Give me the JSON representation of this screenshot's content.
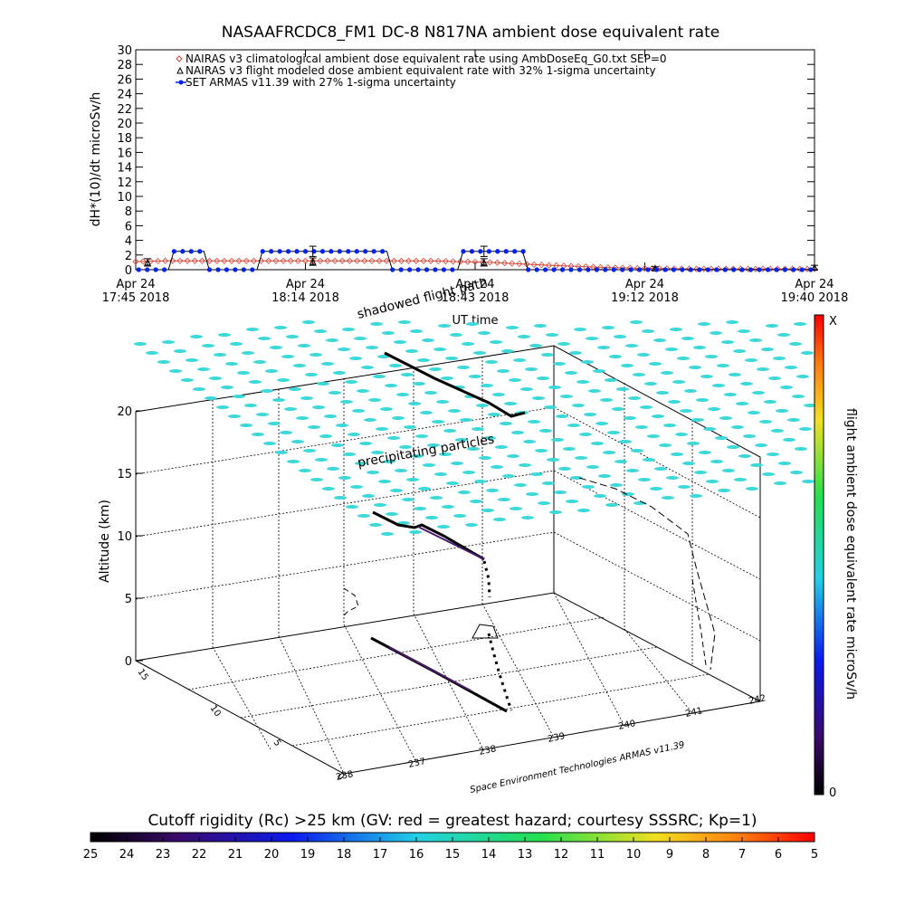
{
  "chart_data": [
    {
      "type": "line",
      "title": "NASAAFRCDC8_FM1 DC-8   N817NA ambient dose equivalent rate",
      "ylabel": "dH*(10)/dt microSv/h",
      "xlabel": "UT time",
      "ylim": [
        0,
        30
      ],
      "yticks": [
        0,
        2,
        4,
        6,
        8,
        10,
        12,
        14,
        16,
        18,
        20,
        22,
        24,
        26,
        28,
        30
      ],
      "xticks": [
        {
          "line1": "Apr 24",
          "line2": "17:45 2018"
        },
        {
          "line1": "Apr 24",
          "line2": "18:14 2018"
        },
        {
          "line1": "Apr 24",
          "line2": "18:43 2018"
        },
        {
          "line1": "Apr 24",
          "line2": "19:12 2018"
        },
        {
          "line1": "Apr 24",
          "line2": "19:40 2018"
        }
      ],
      "legend_placement": "top-left",
      "legend": [
        "NAIRAS v3 climatological ambient dose equivalent rate using AmbDoseEq_G0.txt SEP=0",
        "NAIRAS v3 flight modeled dose ambient equivalent rate with 32% 1-sigma uncertainty",
        "SET ARMAS v11.39 with 27% 1-sigma uncertainty"
      ],
      "series": [
        {
          "name": "NAIRAS v3 climatological",
          "color": "#d24a3c",
          "x_minutes": [
            0,
            5,
            10,
            15,
            20,
            25,
            30,
            35,
            40,
            45,
            50,
            55,
            60,
            65,
            70,
            75,
            80,
            85,
            90,
            95,
            100,
            105,
            110,
            115
          ],
          "values": [
            1.1,
            1.2,
            1.2,
            1.2,
            1.2,
            1.2,
            1.2,
            1.2,
            1.2,
            1.2,
            1.2,
            1.1,
            1.0,
            0.8,
            0.6,
            0.45,
            0.3,
            0.2,
            0.15,
            0.1,
            0.1,
            0.1,
            0.1,
            0.1
          ]
        },
        {
          "name": "NAIRAS v3 flight modeled",
          "color": "#000000",
          "x_minutes": [
            2,
            30,
            59,
            88,
            115
          ],
          "values": [
            1.0,
            1.1,
            1.0,
            0.2,
            0.3
          ],
          "errors": [
            0.5,
            0.5,
            0.5,
            0.2,
            0.3
          ]
        },
        {
          "name": "SET ARMAS v11.39",
          "color": "#0022ee",
          "segments": [
            {
              "x_start": 0,
              "x_end": 6,
              "value": 0
            },
            {
              "x_start": 6,
              "x_end": 12,
              "value": 2.5
            },
            {
              "x_start": 12,
              "x_end": 21,
              "value": 0
            },
            {
              "x_start": 21,
              "x_end": 43,
              "value": 2.5
            },
            {
              "x_start": 43,
              "x_end": 55,
              "value": 0
            },
            {
              "x_start": 55,
              "x_end": 66,
              "value": 2.5
            },
            {
              "x_start": 66,
              "x_end": 115,
              "value": 0
            }
          ],
          "errors": [
            {
              "x": 30,
              "value": 2.5,
              "err": 0.7
            },
            {
              "x": 59,
              "value": 2.5,
              "err": 0.7
            }
          ]
        }
      ]
    },
    {
      "type": "scatter",
      "zlabel": "Altitude (km)",
      "zticks": [
        0,
        5,
        10,
        15,
        20
      ],
      "xticks": [
        "238",
        "237",
        "238",
        "239",
        "240",
        "241",
        "242"
      ],
      "yticks": [
        "0",
        "5",
        "10",
        "15"
      ],
      "annotations": [
        "shadowed flight path",
        "precipitating particles",
        "Space Environment Technologies ARMAS v11.39"
      ],
      "colorbar": {
        "label": "flight ambient dose equivalent rate microSv/h",
        "top_label": "X",
        "bottom_label": "0"
      }
    },
    {
      "type": "heatmap",
      "title": "Cutoff rigidity (Rc) >25 km (GV: red = greatest hazard; courtesy SSSRC; Kp=1)",
      "ticks": [
        "25",
        "24",
        "23",
        "22",
        "21",
        "20",
        "19",
        "18",
        "17",
        "16",
        "15",
        "14",
        "13",
        "12",
        "11",
        "10",
        "9",
        "8",
        "7",
        "6",
        "5"
      ]
    }
  ]
}
